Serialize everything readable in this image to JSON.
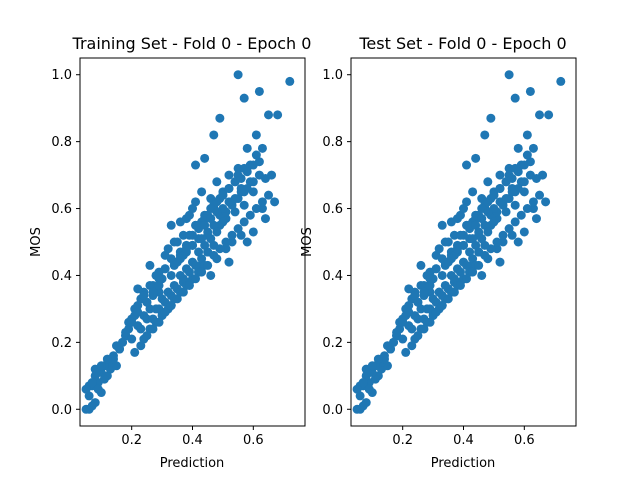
{
  "chart_data": [
    {
      "type": "scatter",
      "title": "Training Set - Fold 0 - Epoch 0",
      "xlabel": "Prediction",
      "ylabel": "MOS",
      "xlim": [
        0.03,
        0.77
      ],
      "ylim": [
        -0.05,
        1.05
      ],
      "xticks": [
        0.2,
        0.4,
        0.6
      ],
      "yticks": [
        0.0,
        0.2,
        0.4,
        0.6,
        0.8,
        1.0
      ],
      "xtick_labels": [
        "0.2",
        "0.4",
        "0.6"
      ],
      "ytick_labels": [
        "0.0",
        "0.2",
        "0.4",
        "0.6",
        "0.8",
        "1.0"
      ],
      "grid": false,
      "marker_color": "#1f77b4",
      "points": {
        "x": [
          0.06,
          0.05,
          0.08,
          0.07,
          0.1,
          0.09,
          0.12,
          0.13,
          0.15,
          0.08,
          0.11,
          0.07,
          0.14,
          0.16,
          0.17,
          0.19,
          0.18,
          0.2,
          0.21,
          0.22,
          0.23,
          0.24,
          0.18,
          0.21,
          0.25,
          0.26,
          0.27,
          0.28,
          0.22,
          0.24,
          0.26,
          0.29,
          0.3,
          0.31,
          0.32,
          0.33,
          0.34,
          0.27,
          0.29,
          0.31,
          0.33,
          0.35,
          0.36,
          0.37,
          0.38,
          0.39,
          0.4,
          0.41,
          0.42,
          0.34,
          0.36,
          0.38,
          0.4,
          0.42,
          0.43,
          0.44,
          0.45,
          0.46,
          0.47,
          0.48,
          0.49,
          0.5,
          0.51,
          0.52,
          0.53,
          0.54,
          0.55,
          0.56,
          0.57,
          0.58,
          0.59,
          0.6,
          0.61,
          0.62,
          0.63,
          0.64,
          0.65,
          0.66,
          0.67,
          0.68,
          0.72,
          0.55,
          0.57,
          0.62,
          0.49,
          0.47,
          0.44,
          0.41,
          0.3,
          0.33,
          0.46,
          0.52,
          0.58,
          0.6,
          0.64,
          0.39,
          0.35,
          0.42,
          0.48,
          0.51,
          0.56,
          0.53,
          0.45,
          0.43,
          0.37,
          0.32,
          0.28,
          0.25,
          0.23,
          0.2,
          0.16,
          0.13,
          0.1,
          0.09,
          0.06,
          0.11,
          0.14,
          0.17,
          0.19,
          0.22,
          0.24,
          0.26,
          0.29,
          0.31,
          0.34,
          0.36,
          0.38,
          0.4,
          0.41,
          0.43,
          0.45,
          0.47,
          0.49,
          0.5,
          0.52,
          0.54,
          0.55,
          0.57,
          0.59,
          0.61,
          0.63,
          0.39,
          0.42,
          0.44,
          0.46,
          0.48,
          0.5,
          0.52,
          0.54,
          0.56,
          0.58,
          0.6,
          0.35,
          0.37,
          0.4,
          0.43,
          0.45,
          0.47,
          0.49,
          0.51,
          0.53,
          0.55,
          0.57,
          0.3,
          0.32,
          0.34,
          0.36,
          0.38,
          0.4,
          0.42,
          0.44,
          0.46,
          0.48,
          0.5,
          0.27,
          0.29,
          0.31,
          0.33,
          0.35,
          0.37,
          0.39,
          0.41,
          0.43,
          0.45,
          0.47,
          0.24,
          0.26,
          0.28,
          0.3,
          0.32,
          0.34,
          0.36,
          0.38,
          0.4,
          0.42,
          0.44,
          0.21,
          0.23,
          0.25,
          0.27,
          0.29,
          0.31,
          0.33,
          0.35,
          0.37,
          0.39,
          0.41,
          0.43,
          0.45,
          0.47,
          0.49,
          0.51,
          0.53,
          0.55,
          0.57,
          0.59,
          0.61,
          0.63,
          0.65,
          0.5,
          0.52,
          0.46,
          0.48,
          0.58,
          0.6,
          0.62,
          0.44,
          0.54,
          0.56,
          0.36,
          0.38,
          0.33,
          0.29,
          0.27,
          0.25,
          0.22,
          0.2,
          0.18,
          0.15,
          0.12,
          0.08,
          0.06,
          0.09,
          0.07,
          0.05,
          0.1
        ],
        "y": [
          0.0,
          0.0,
          0.02,
          0.01,
          0.05,
          0.08,
          0.1,
          0.12,
          0.13,
          0.12,
          0.09,
          0.07,
          0.16,
          0.18,
          0.2,
          0.24,
          0.22,
          0.27,
          0.3,
          0.25,
          0.33,
          0.35,
          0.22,
          0.28,
          0.32,
          0.3,
          0.37,
          0.4,
          0.36,
          0.28,
          0.43,
          0.35,
          0.39,
          0.46,
          0.48,
          0.45,
          0.5,
          0.34,
          0.41,
          0.42,
          0.55,
          0.5,
          0.46,
          0.52,
          0.57,
          0.58,
          0.49,
          0.62,
          0.54,
          0.43,
          0.56,
          0.47,
          0.6,
          0.51,
          0.65,
          0.58,
          0.52,
          0.63,
          0.6,
          0.68,
          0.55,
          0.64,
          0.57,
          0.7,
          0.62,
          0.59,
          0.72,
          0.66,
          0.61,
          0.78,
          0.68,
          0.65,
          0.82,
          0.74,
          0.6,
          0.69,
          0.88,
          0.7,
          0.62,
          0.88,
          0.98,
          1.0,
          0.93,
          0.95,
          0.87,
          0.82,
          0.75,
          0.73,
          0.29,
          0.31,
          0.4,
          0.44,
          0.5,
          0.53,
          0.57,
          0.38,
          0.36,
          0.41,
          0.45,
          0.48,
          0.52,
          0.5,
          0.47,
          0.43,
          0.39,
          0.35,
          0.3,
          0.27,
          0.24,
          0.21,
          0.18,
          0.14,
          0.11,
          0.06,
          0.04,
          0.13,
          0.15,
          0.2,
          0.26,
          0.31,
          0.34,
          0.37,
          0.39,
          0.42,
          0.44,
          0.47,
          0.49,
          0.52,
          0.55,
          0.56,
          0.58,
          0.61,
          0.63,
          0.65,
          0.66,
          0.68,
          0.7,
          0.72,
          0.73,
          0.76,
          0.78,
          0.52,
          0.55,
          0.57,
          0.6,
          0.62,
          0.64,
          0.66,
          0.68,
          0.69,
          0.71,
          0.73,
          0.44,
          0.46,
          0.49,
          0.51,
          0.53,
          0.55,
          0.58,
          0.59,
          0.61,
          0.63,
          0.65,
          0.33,
          0.35,
          0.37,
          0.4,
          0.42,
          0.44,
          0.47,
          0.49,
          0.51,
          0.53,
          0.56,
          0.27,
          0.3,
          0.32,
          0.34,
          0.36,
          0.38,
          0.41,
          0.43,
          0.45,
          0.47,
          0.49,
          0.21,
          0.24,
          0.26,
          0.28,
          0.3,
          0.33,
          0.35,
          0.37,
          0.39,
          0.41,
          0.43,
          0.17,
          0.19,
          0.22,
          0.24,
          0.26,
          0.29,
          0.31,
          0.33,
          0.35,
          0.37,
          0.39,
          0.41,
          0.43,
          0.46,
          0.48,
          0.5,
          0.52,
          0.54,
          0.56,
          0.58,
          0.6,
          0.62,
          0.64,
          0.6,
          0.62,
          0.57,
          0.59,
          0.66,
          0.68,
          0.7,
          0.55,
          0.63,
          0.65,
          0.45,
          0.48,
          0.4,
          0.37,
          0.35,
          0.32,
          0.29,
          0.26,
          0.23,
          0.19,
          0.15,
          0.1,
          0.07,
          0.11,
          0.08,
          0.06,
          0.13
        ]
      }
    },
    {
      "type": "scatter",
      "title": "Test Set - Fold 0 - Epoch 0",
      "xlabel": "Prediction",
      "ylabel": "MOS",
      "xlim": [
        0.03,
        0.77
      ],
      "ylim": [
        -0.05,
        1.05
      ],
      "xticks": [
        0.2,
        0.4,
        0.6
      ],
      "yticks": [
        0.0,
        0.2,
        0.4,
        0.6,
        0.8,
        1.0
      ],
      "xtick_labels": [
        "0.2",
        "0.4",
        "0.6"
      ],
      "ytick_labels": [
        "0.0",
        "0.2",
        "0.4",
        "0.6",
        "0.8",
        "1.0"
      ],
      "grid": false,
      "marker_color": "#1f77b4",
      "points": {
        "x": [
          0.06,
          0.05,
          0.08,
          0.07,
          0.1,
          0.09,
          0.12,
          0.13,
          0.15,
          0.08,
          0.11,
          0.07,
          0.14,
          0.16,
          0.17,
          0.19,
          0.18,
          0.2,
          0.21,
          0.22,
          0.23,
          0.24,
          0.18,
          0.21,
          0.25,
          0.26,
          0.27,
          0.28,
          0.22,
          0.24,
          0.26,
          0.29,
          0.3,
          0.31,
          0.32,
          0.33,
          0.34,
          0.27,
          0.29,
          0.31,
          0.33,
          0.35,
          0.36,
          0.37,
          0.38,
          0.39,
          0.4,
          0.41,
          0.42,
          0.34,
          0.36,
          0.38,
          0.4,
          0.42,
          0.43,
          0.44,
          0.45,
          0.46,
          0.47,
          0.48,
          0.49,
          0.5,
          0.51,
          0.52,
          0.53,
          0.54,
          0.55,
          0.56,
          0.57,
          0.58,
          0.59,
          0.6,
          0.61,
          0.62,
          0.63,
          0.64,
          0.65,
          0.66,
          0.67,
          0.68,
          0.72,
          0.55,
          0.57,
          0.62,
          0.49,
          0.47,
          0.44,
          0.41,
          0.3,
          0.33,
          0.46,
          0.52,
          0.58,
          0.6,
          0.64,
          0.39,
          0.35,
          0.42,
          0.48,
          0.51,
          0.56,
          0.53,
          0.45,
          0.43,
          0.37,
          0.32,
          0.28,
          0.25,
          0.23,
          0.2,
          0.16,
          0.13,
          0.1,
          0.09,
          0.06,
          0.11,
          0.14,
          0.17,
          0.19,
          0.22,
          0.24,
          0.26,
          0.29,
          0.31,
          0.34,
          0.36,
          0.38,
          0.4,
          0.41,
          0.43,
          0.45,
          0.47,
          0.49,
          0.5,
          0.52,
          0.54,
          0.55,
          0.57,
          0.59,
          0.61,
          0.63,
          0.39,
          0.42,
          0.44,
          0.46,
          0.48,
          0.5,
          0.52,
          0.54,
          0.56,
          0.58,
          0.6,
          0.35,
          0.37,
          0.4,
          0.43,
          0.45,
          0.47,
          0.49,
          0.51,
          0.53,
          0.55,
          0.57,
          0.3,
          0.32,
          0.34,
          0.36,
          0.38,
          0.4,
          0.42,
          0.44,
          0.46,
          0.48,
          0.5,
          0.27,
          0.29,
          0.31,
          0.33,
          0.35,
          0.37,
          0.39,
          0.41,
          0.43,
          0.45,
          0.47,
          0.24,
          0.26,
          0.28,
          0.3,
          0.32,
          0.34,
          0.36,
          0.38,
          0.4,
          0.42,
          0.44,
          0.21,
          0.23,
          0.25,
          0.27,
          0.29,
          0.31,
          0.33,
          0.35,
          0.37,
          0.39,
          0.41,
          0.43,
          0.45,
          0.47,
          0.49,
          0.51,
          0.53,
          0.55,
          0.57,
          0.59,
          0.61,
          0.63,
          0.65,
          0.5,
          0.52,
          0.46,
          0.48,
          0.58,
          0.6,
          0.62,
          0.44,
          0.54,
          0.56,
          0.36,
          0.38,
          0.33,
          0.29,
          0.27,
          0.25,
          0.22,
          0.2,
          0.18,
          0.15,
          0.12,
          0.08,
          0.06,
          0.09,
          0.07,
          0.05,
          0.1
        ],
        "y": [
          0.0,
          0.0,
          0.02,
          0.01,
          0.05,
          0.08,
          0.1,
          0.12,
          0.13,
          0.12,
          0.09,
          0.07,
          0.16,
          0.18,
          0.2,
          0.24,
          0.22,
          0.27,
          0.3,
          0.25,
          0.33,
          0.35,
          0.22,
          0.28,
          0.32,
          0.3,
          0.37,
          0.4,
          0.36,
          0.28,
          0.43,
          0.35,
          0.39,
          0.46,
          0.48,
          0.45,
          0.5,
          0.34,
          0.41,
          0.42,
          0.55,
          0.5,
          0.46,
          0.52,
          0.57,
          0.58,
          0.49,
          0.62,
          0.54,
          0.43,
          0.56,
          0.47,
          0.6,
          0.51,
          0.65,
          0.58,
          0.52,
          0.63,
          0.6,
          0.68,
          0.55,
          0.64,
          0.57,
          0.7,
          0.62,
          0.59,
          0.72,
          0.66,
          0.61,
          0.78,
          0.68,
          0.65,
          0.82,
          0.74,
          0.6,
          0.69,
          0.88,
          0.7,
          0.62,
          0.88,
          0.98,
          1.0,
          0.93,
          0.95,
          0.87,
          0.82,
          0.75,
          0.73,
          0.29,
          0.31,
          0.4,
          0.44,
          0.5,
          0.53,
          0.57,
          0.38,
          0.36,
          0.41,
          0.45,
          0.48,
          0.52,
          0.5,
          0.47,
          0.43,
          0.39,
          0.35,
          0.3,
          0.27,
          0.24,
          0.21,
          0.18,
          0.14,
          0.11,
          0.06,
          0.04,
          0.13,
          0.15,
          0.2,
          0.26,
          0.31,
          0.34,
          0.37,
          0.39,
          0.42,
          0.44,
          0.47,
          0.49,
          0.52,
          0.55,
          0.56,
          0.58,
          0.61,
          0.63,
          0.65,
          0.66,
          0.68,
          0.7,
          0.72,
          0.73,
          0.76,
          0.78,
          0.52,
          0.55,
          0.57,
          0.6,
          0.62,
          0.64,
          0.66,
          0.68,
          0.69,
          0.71,
          0.73,
          0.44,
          0.46,
          0.49,
          0.51,
          0.53,
          0.55,
          0.58,
          0.59,
          0.61,
          0.63,
          0.65,
          0.33,
          0.35,
          0.37,
          0.4,
          0.42,
          0.44,
          0.47,
          0.49,
          0.51,
          0.53,
          0.56,
          0.27,
          0.3,
          0.32,
          0.34,
          0.36,
          0.38,
          0.41,
          0.43,
          0.45,
          0.47,
          0.49,
          0.21,
          0.24,
          0.26,
          0.28,
          0.3,
          0.33,
          0.35,
          0.37,
          0.39,
          0.41,
          0.43,
          0.17,
          0.19,
          0.22,
          0.24,
          0.26,
          0.29,
          0.31,
          0.33,
          0.35,
          0.37,
          0.39,
          0.41,
          0.43,
          0.46,
          0.48,
          0.5,
          0.52,
          0.54,
          0.56,
          0.58,
          0.6,
          0.62,
          0.64,
          0.6,
          0.62,
          0.57,
          0.59,
          0.66,
          0.68,
          0.7,
          0.55,
          0.63,
          0.65,
          0.45,
          0.48,
          0.4,
          0.37,
          0.35,
          0.32,
          0.29,
          0.26,
          0.23,
          0.19,
          0.15,
          0.1,
          0.07,
          0.11,
          0.08,
          0.06,
          0.13
        ]
      }
    }
  ]
}
